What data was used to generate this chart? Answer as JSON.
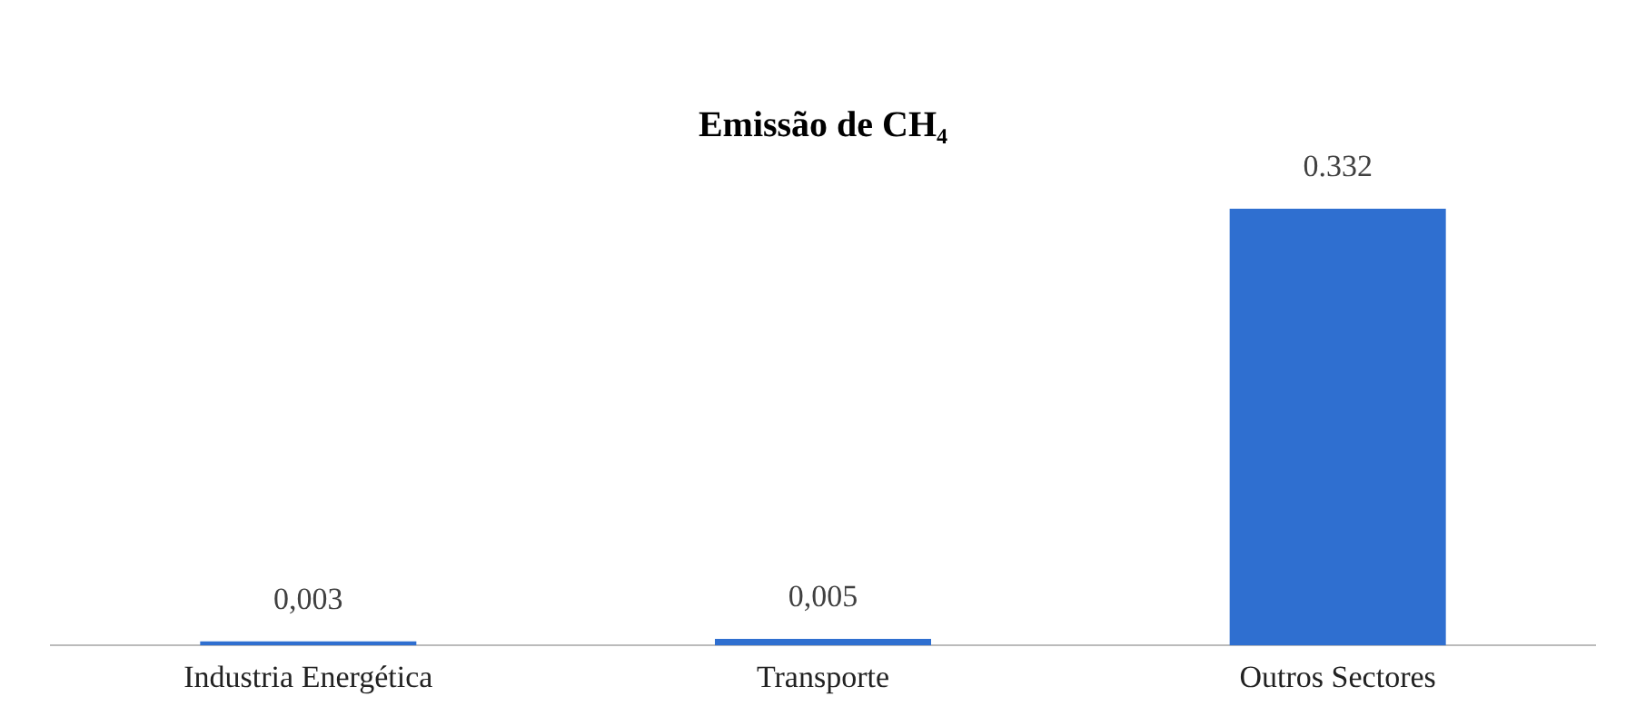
{
  "chart_data": {
    "type": "bar",
    "title": "Emissão de CH₄",
    "categories": [
      "Industria Energética",
      "Transporte",
      "Outros Sectores"
    ],
    "values": [
      0.003,
      0.005,
      0.332
    ],
    "value_labels": [
      "0,003",
      "0,005",
      "0.332"
    ],
    "color": "#2f6fd0",
    "grid": false,
    "legend": false
  }
}
